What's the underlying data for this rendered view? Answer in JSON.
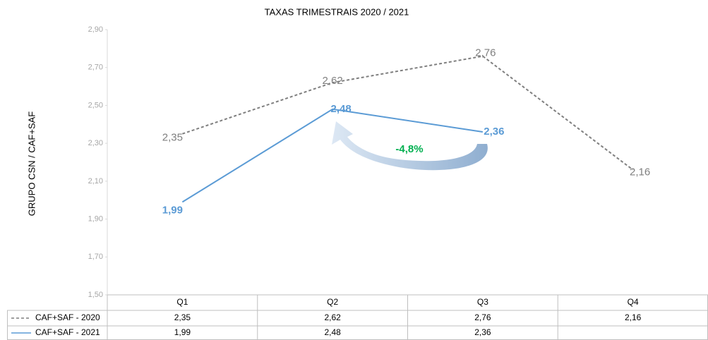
{
  "chart_data": {
    "type": "line",
    "title": "TAXAS TRIMESTRAIS 2020 / 2021",
    "ylabel": "GRUPO CSN / CAF+SAF",
    "categories": [
      "Q1",
      "Q2",
      "Q3",
      "Q4"
    ],
    "series": [
      {
        "name": "CAF+SAF - 2020",
        "color": "#7f7f7f",
        "dash": true,
        "values": [
          2.35,
          2.62,
          2.76,
          2.16
        ],
        "value_labels": [
          "2,35",
          "2,62",
          "2,76",
          "2,16"
        ]
      },
      {
        "name": "CAF+SAF - 2021",
        "color": "#5b9bd5",
        "dash": false,
        "values": [
          1.99,
          2.48,
          2.36,
          null
        ],
        "value_labels": [
          "1,99",
          "2,48",
          "2,36",
          null
        ]
      }
    ],
    "ylim": [
      1.5,
      2.9
    ],
    "yticks": [
      {
        "value": 1.5,
        "label": "1,50"
      },
      {
        "value": 1.7,
        "label": "1,70"
      },
      {
        "value": 1.9,
        "label": "1,90"
      },
      {
        "value": 2.1,
        "label": "2,10"
      },
      {
        "value": 2.3,
        "label": "2,30"
      },
      {
        "value": 2.5,
        "label": "2,50"
      },
      {
        "value": 2.7,
        "label": "2,70"
      },
      {
        "value": 2.9,
        "label": "2,90"
      }
    ],
    "annotation": "-4,8%"
  }
}
